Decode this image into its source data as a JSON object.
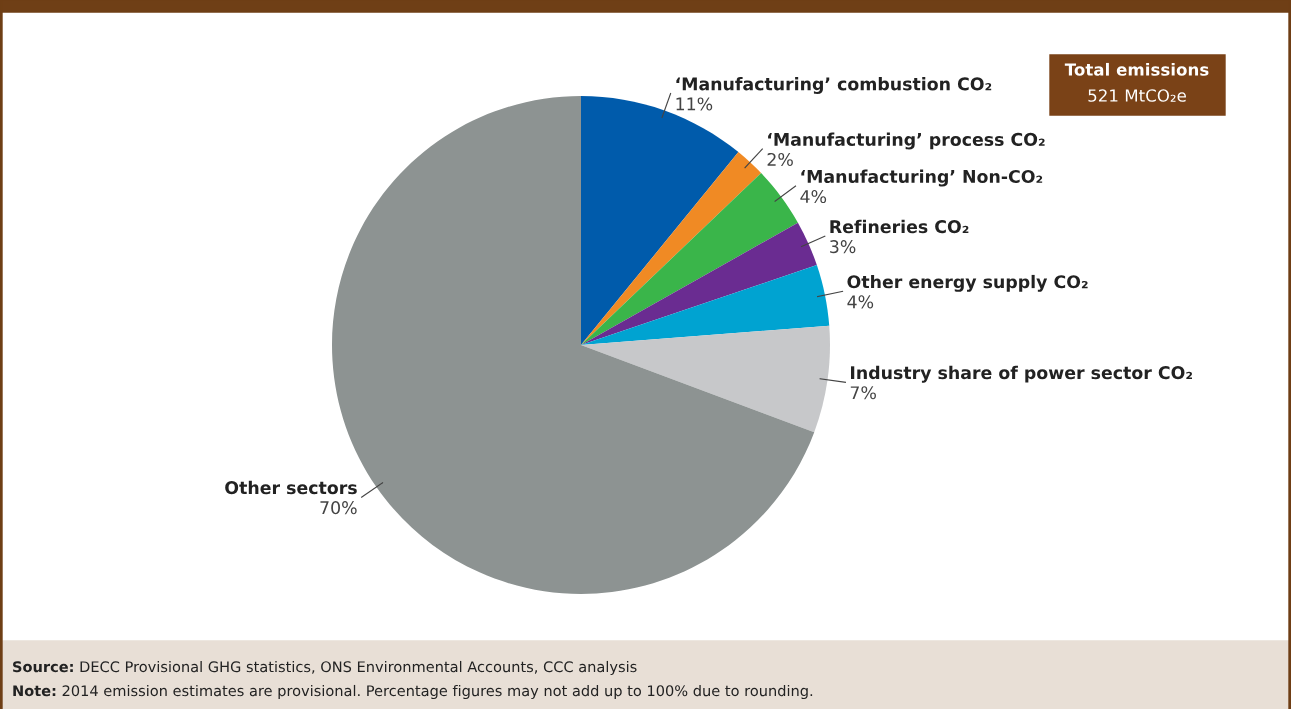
{
  "chart_data": {
    "type": "pie",
    "categories": [
      "‘Manufacturing’ combustion CO₂",
      "‘Manufacturing’ process CO₂",
      "‘Manufacturing’ Non-CO₂",
      "Refineries CO₂",
      "Other energy supply CO₂",
      "Industry share of power sector CO₂",
      "Other sectors"
    ],
    "values": [
      11,
      2,
      4,
      3,
      4,
      7,
      70
    ],
    "value_labels": [
      "11%",
      "2%",
      "4%",
      "3%",
      "4%",
      "7%",
      "70%"
    ],
    "colors": [
      "#005bab",
      "#f08a24",
      "#3ab54a",
      "#6a2c91",
      "#00a3d1",
      "#c7c8ca",
      "#8d9392"
    ],
    "annotations": [
      "Total emissions",
      "521 MtCO₂e",
      "Source: DECC Provisional GHG statistics, ONS Environmental Accounts, CCC analysis",
      "Note: 2014 emission estimates are provisional. Percentage figures may not add up to 100% due to rounding."
    ]
  }
}
